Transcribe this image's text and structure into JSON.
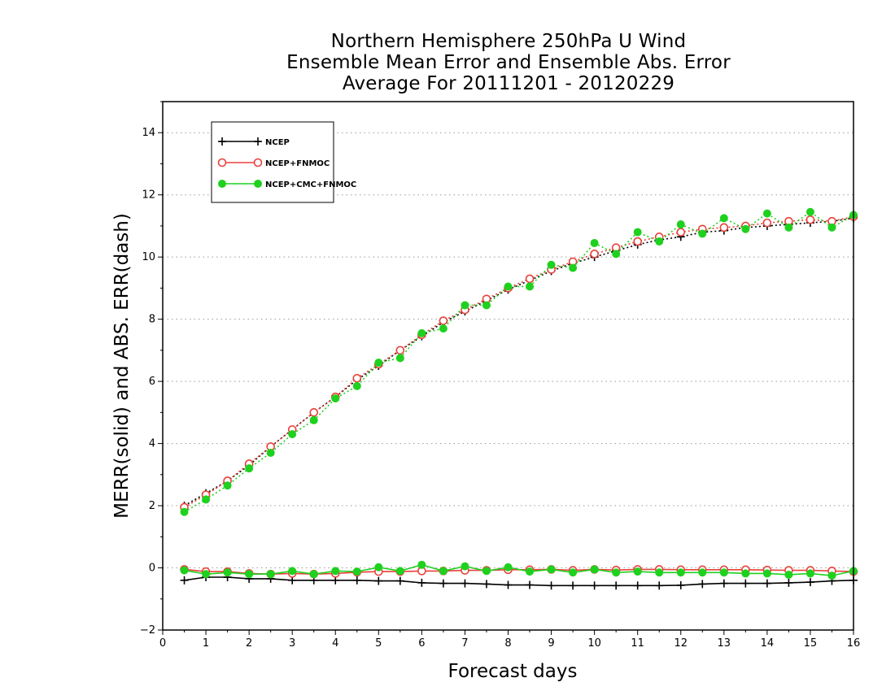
{
  "chart_data": {
    "type": "line",
    "title": "Northern Hemisphere 250hPa U Wind",
    "subtitle": "Ensemble Mean Error and Ensemble Abs. Error",
    "subtitle2": "Average For 20111201 - 20120229",
    "xlabel": "Forecast days",
    "ylabel": "MERR(solid) and ABS. ERR(dash)",
    "xlim": [
      0,
      16
    ],
    "ylim": [
      -2,
      15
    ],
    "xticks": [
      "0",
      "1",
      "2",
      "3",
      "4",
      "5",
      "6",
      "7",
      "8",
      "9",
      "10",
      "11",
      "12",
      "13",
      "14",
      "15",
      "16"
    ],
    "yticks": [
      "−2",
      "0",
      "2",
      "4",
      "6",
      "8",
      "10",
      "12",
      "14"
    ],
    "grid": true,
    "legend_position": "top-left",
    "x": [
      0.5,
      1,
      1.5,
      2,
      2.5,
      3,
      3.5,
      4,
      4.5,
      5,
      5.5,
      6,
      6.5,
      7,
      7.5,
      8,
      8.5,
      9,
      9.5,
      10,
      10.5,
      11,
      11.5,
      12,
      12.5,
      13,
      13.5,
      14,
      14.5,
      15,
      15.5,
      16
    ],
    "series": [
      {
        "name": "NCEP",
        "color": "#000000",
        "marker": "plus",
        "abs_err": [
          2.0,
          2.4,
          2.8,
          3.3,
          3.9,
          4.45,
          5.0,
          5.5,
          6.05,
          6.5,
          7.0,
          7.45,
          7.9,
          8.25,
          8.6,
          8.95,
          9.25,
          9.55,
          9.8,
          10.0,
          10.2,
          10.4,
          10.55,
          10.65,
          10.8,
          10.85,
          10.95,
          11.0,
          11.05,
          11.1,
          11.15,
          11.25
        ],
        "mean_err": [
          -0.4,
          -0.3,
          -0.3,
          -0.35,
          -0.35,
          -0.4,
          -0.4,
          -0.4,
          -0.4,
          -0.42,
          -0.42,
          -0.48,
          -0.5,
          -0.5,
          -0.52,
          -0.55,
          -0.55,
          -0.57,
          -0.57,
          -0.57,
          -0.57,
          -0.57,
          -0.57,
          -0.56,
          -0.52,
          -0.5,
          -0.5,
          -0.5,
          -0.48,
          -0.46,
          -0.42,
          -0.4
        ]
      },
      {
        "name": "NCEP+FNMOC",
        "color": "#e8413a",
        "marker": "circle",
        "abs_err": [
          1.95,
          2.35,
          2.8,
          3.35,
          3.9,
          4.45,
          5.0,
          5.5,
          6.1,
          6.55,
          7.0,
          7.5,
          7.95,
          8.3,
          8.65,
          9.0,
          9.3,
          9.6,
          9.85,
          10.1,
          10.3,
          10.5,
          10.65,
          10.8,
          10.9,
          10.95,
          11.0,
          11.1,
          11.15,
          11.2,
          11.15,
          11.3
        ],
        "mean_err": [
          -0.05,
          -0.12,
          -0.12,
          -0.18,
          -0.2,
          -0.18,
          -0.2,
          -0.18,
          -0.14,
          -0.12,
          -0.12,
          -0.1,
          -0.1,
          -0.08,
          -0.08,
          -0.06,
          -0.06,
          -0.05,
          -0.08,
          -0.05,
          -0.07,
          -0.05,
          -0.05,
          -0.06,
          -0.06,
          -0.06,
          -0.06,
          -0.07,
          -0.08,
          -0.08,
          -0.1,
          -0.12
        ]
      },
      {
        "name": "NCEP+CMC+FNMOC",
        "color": "#1fd11f",
        "marker": "dot",
        "abs_err": [
          1.8,
          2.2,
          2.65,
          3.2,
          3.7,
          4.3,
          4.75,
          5.45,
          5.85,
          6.6,
          6.75,
          7.55,
          7.7,
          8.45,
          8.45,
          9.05,
          9.05,
          9.75,
          9.65,
          10.45,
          10.1,
          10.8,
          10.5,
          11.05,
          10.75,
          11.25,
          10.9,
          11.4,
          10.95,
          11.45,
          10.95,
          11.35
        ],
        "mean_err": [
          -0.08,
          -0.2,
          -0.15,
          -0.2,
          -0.2,
          -0.1,
          -0.2,
          -0.1,
          -0.12,
          0.02,
          -0.1,
          0.1,
          -0.1,
          0.05,
          -0.1,
          0.02,
          -0.12,
          -0.05,
          -0.15,
          -0.05,
          -0.15,
          -0.12,
          -0.15,
          -0.15,
          -0.15,
          -0.15,
          -0.18,
          -0.18,
          -0.22,
          -0.18,
          -0.25,
          -0.1
        ]
      }
    ]
  }
}
